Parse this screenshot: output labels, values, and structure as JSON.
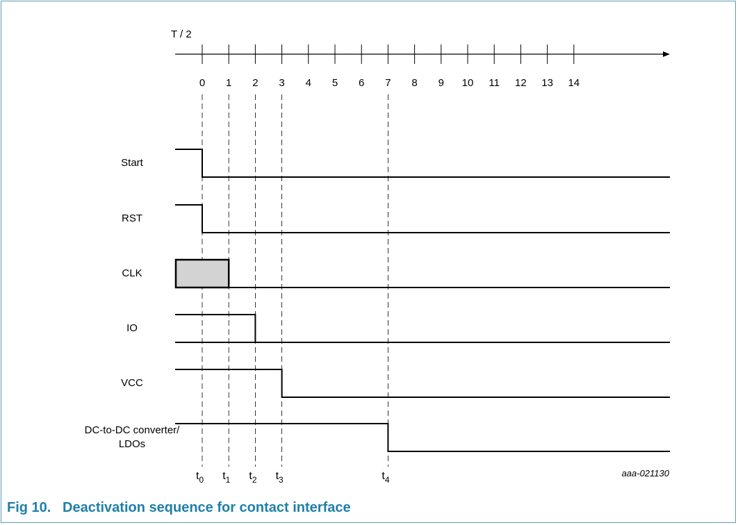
{
  "figure": {
    "caption_number": "Fig 10.",
    "caption_title": "Deactivation sequence for contact interface",
    "code": "aaa-021130"
  },
  "axis": {
    "label": "T / 2",
    "ticks": [
      "0",
      "1",
      "2",
      "3",
      "4",
      "5",
      "6",
      "7",
      "8",
      "9",
      "10",
      "11",
      "12",
      "13",
      "14"
    ]
  },
  "signals": [
    {
      "name": "Start",
      "falls_at_tick": 0,
      "clock": false
    },
    {
      "name": "RST",
      "falls_at_tick": 0,
      "clock": false
    },
    {
      "name": "CLK",
      "falls_at_tick": 1,
      "clock": true
    },
    {
      "name": "IO",
      "falls_at_tick": 2,
      "clock": false
    },
    {
      "name": "VCC",
      "falls_at_tick": 3,
      "clock": false
    },
    {
      "name": "DC-to-DC converter/\nLDOs",
      "falls_at_tick": 7,
      "clock": false
    }
  ],
  "markers": [
    {
      "base": "t",
      "sub": "0",
      "at_tick": 0
    },
    {
      "base": "t",
      "sub": "1",
      "at_tick": 1
    },
    {
      "base": "t",
      "sub": "2",
      "at_tick": 2
    },
    {
      "base": "t",
      "sub": "3",
      "at_tick": 3
    },
    {
      "base": "t",
      "sub": "4",
      "at_tick": 7
    }
  ],
  "colors": {
    "caption": "#1f7fa8",
    "border": "#5a9bb0",
    "clock_fill": "#d3d3d3"
  }
}
